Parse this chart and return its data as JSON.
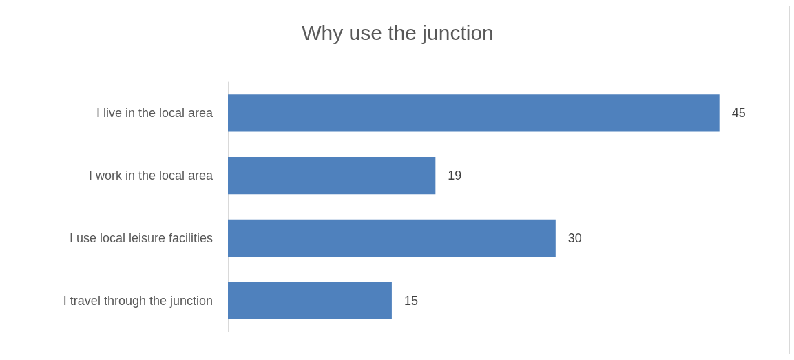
{
  "chart_data": {
    "type": "bar",
    "title": "Why use the junction",
    "orientation": "horizontal",
    "data_labels": true,
    "categories": [
      "I live in the local area",
      "I work in the local area",
      "I use local leisure facilities",
      "I travel through the junction"
    ],
    "values": [
      45,
      19,
      30,
      15
    ],
    "color": "#4f81bd"
  }
}
